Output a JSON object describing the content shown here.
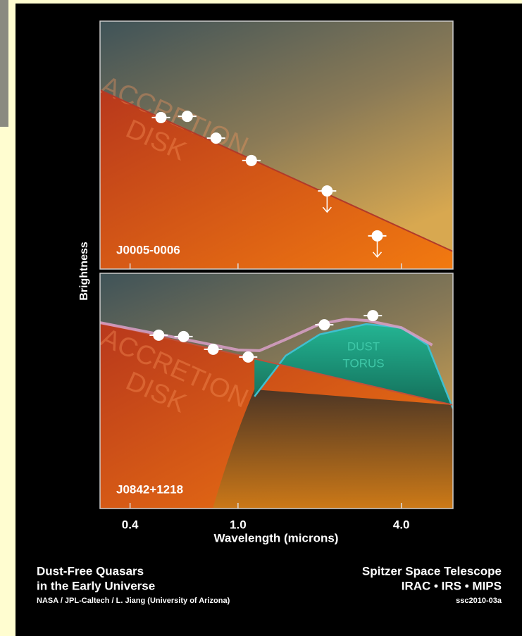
{
  "chart_data": [
    {
      "type": "scatter",
      "label": "J0005-0006",
      "x_scale": "log",
      "xlim": [
        0.31,
        6.2
      ],
      "ylim": [
        0,
        10
      ],
      "disk_label": [
        "ACCRETION",
        "DISK"
      ],
      "points": {
        "x": [
          0.52,
          0.65,
          0.83,
          1.12,
          2.13,
          3.26
        ],
        "values": [
          6.11,
          6.16,
          5.28,
          4.38,
          3.15,
          1.34
        ],
        "upper_limit": [
          false,
          false,
          false,
          false,
          true,
          true
        ],
        "color": "#ffffff"
      },
      "accretion_disk": {
        "x": [
          0.31,
          6.2
        ],
        "values": [
          7.22,
          0.71
        ],
        "color": "#b03a2a"
      }
    },
    {
      "type": "scatter",
      "label": "J0842+1218",
      "x_scale": "log",
      "xlim": [
        0.31,
        6.2
      ],
      "ylim": [
        0,
        10
      ],
      "xlabel": "Wavelength (microns)",
      "ylabel": "Brightness",
      "xticks": [
        0.4,
        {
          "value": 1.0,
          "label": "1.0"
        },
        {
          "value": 4.0,
          "label": "4.0"
        }
      ],
      "disk_label": [
        "ACCRETION",
        "DISK"
      ],
      "torus_label": [
        "DUST",
        "TORUS"
      ],
      "points": {
        "x": [
          0.51,
          0.63,
          0.81,
          1.09,
          2.08,
          3.14
        ],
        "values": [
          7.37,
          7.31,
          6.77,
          6.44,
          7.81,
          8.2
        ],
        "upper_limit": [
          false,
          false,
          false,
          false,
          false,
          false
        ],
        "color": "#ffffff"
      },
      "accretion_disk": {
        "x": [
          0.31,
          6.2
        ],
        "values": [
          7.9,
          4.4
        ],
        "color": "#c0503a"
      },
      "dust_torus": {
        "x": [
          1.15,
          1.5,
          2.0,
          2.97,
          4.0,
          5.0,
          6.2
        ],
        "values": [
          4.76,
          6.5,
          7.4,
          7.84,
          7.69,
          6.95,
          4.25
        ],
        "color": "#1aa88e",
        "line_color": "#3fc0d0"
      },
      "total": {
        "x": [
          0.31,
          0.6,
          1.0,
          1.2,
          1.5,
          2.0,
          2.5,
          3.0,
          4.0,
          5.2
        ],
        "values": [
          7.9,
          7.25,
          6.74,
          6.71,
          7.19,
          7.84,
          8.05,
          7.99,
          7.69,
          6.95
        ],
        "color": "#d9a0c8"
      }
    }
  ],
  "footer": {
    "left": [
      "Dust-Free Quasars",
      "in the Early Universe"
    ],
    "credit": "NASA / JPL-Caltech / L. Jiang (University of Arizona)",
    "right": [
      "Spitzer Space Telescope",
      "IRAC • IRS • MIPS"
    ],
    "id": "ssc2010-03a"
  }
}
